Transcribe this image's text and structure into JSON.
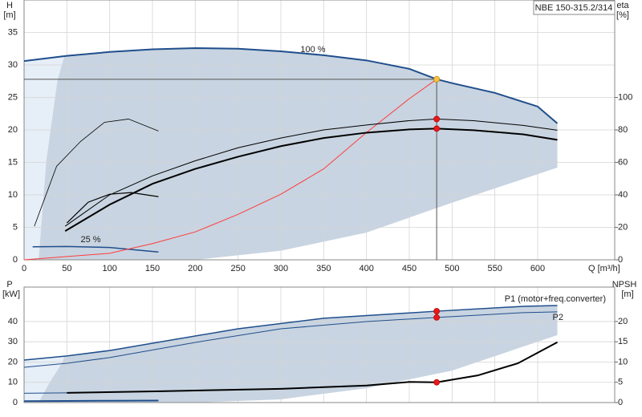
{
  "chart_data": [
    {
      "type": "line",
      "title": "NBE 150-315.2/314",
      "y_label": "H",
      "y_unit": "[m]",
      "y2_label": "eta",
      "y2_unit": "[%]",
      "x_label": "Q [m³/h]",
      "xlim": [
        0,
        690
      ],
      "xticks": [
        0,
        50,
        100,
        150,
        200,
        250,
        300,
        350,
        400,
        450,
        500,
        550,
        600
      ],
      "ylim": [
        0,
        40
      ],
      "yticks": [
        0,
        5,
        10,
        15,
        20,
        25,
        30,
        35
      ],
      "y2lim": [
        0,
        160
      ],
      "y2ticks": [
        0,
        20,
        40,
        60,
        80,
        100
      ],
      "grid": true,
      "areas": [
        {
          "color": "#e6eef7",
          "x": [
            0,
            47,
            39,
            26,
            17,
            0
          ],
          "values": [
            30.6,
            31.3,
            27.6,
            15.3,
            0,
            0
          ]
        },
        {
          "color": "#c8d4e1",
          "x": [
            47,
            100,
            150,
            200,
            250,
            300,
            350,
            400,
            450,
            482,
            500,
            550,
            600,
            623,
            623,
            500,
            400,
            300,
            200,
            17,
            26,
            39
          ],
          "values": [
            31.3,
            32,
            32.4,
            32.6,
            32.5,
            32.1,
            31.5,
            30.7,
            29.4,
            27.8,
            27.2,
            25.7,
            23.6,
            21,
            14.2,
            8.8,
            4.2,
            1.4,
            0,
            0,
            15.3,
            27.6
          ]
        }
      ],
      "series": [
        {
          "name": "100 %",
          "color": "#1f4e8c",
          "width": 2,
          "x": [
            0,
            50,
            100,
            150,
            200,
            250,
            300,
            350,
            400,
            450,
            482,
            500,
            550,
            600,
            623
          ],
          "values": [
            30.6,
            31.4,
            32,
            32.4,
            32.6,
            32.5,
            32.1,
            31.5,
            30.7,
            29.4,
            27.8,
            27.2,
            25.7,
            23.6,
            21
          ]
        },
        {
          "name": "25 %",
          "color": "#1f4e8c",
          "width": 1.5,
          "x": [
            10,
            50,
            100,
            157
          ],
          "values": [
            2,
            2.05,
            1.9,
            1.2
          ]
        },
        {
          "color": "#ff3b3b",
          "width": 1,
          "x": [
            0,
            100,
            150,
            200,
            250,
            300,
            350,
            400,
            450,
            482
          ],
          "values": [
            0,
            1,
            2.5,
            4.3,
            7,
            10.1,
            14,
            19.6,
            24.8,
            27.8
          ]
        },
        {
          "color": "#000000",
          "width": 1,
          "axis": "y2",
          "x": [
            48,
            100,
            150,
            200,
            250,
            300,
            350,
            400,
            450,
            482,
            525,
            583,
            623
          ],
          "values": [
            20.7,
            40,
            51.7,
            61,
            69,
            75,
            80,
            83,
            85.7,
            86.7,
            85.7,
            82.8,
            79.8
          ]
        },
        {
          "color": "#000000",
          "width": 2,
          "axis": "y2",
          "x": [
            48,
            100,
            150,
            200,
            250,
            300,
            350,
            400,
            450,
            482,
            525,
            583,
            623
          ],
          "values": [
            17.7,
            34,
            46.8,
            56,
            63.5,
            70,
            75,
            78.3,
            80.3,
            80.8,
            79.8,
            77.3,
            73.9
          ]
        },
        {
          "color": "#000000",
          "width": 0.8,
          "axis": "y2",
          "x": [
            12,
            38,
            66,
            94,
            122,
            157
          ],
          "values": [
            20.7,
            57.6,
            72.9,
            84.7,
            86.7,
            79.3
          ]
        },
        {
          "color": "#000000",
          "width": 1.2,
          "axis": "y2",
          "x": [
            50,
            75,
            100,
            125,
            157
          ],
          "values": [
            22.7,
            35.5,
            40.4,
            41.4,
            38.9
          ]
        }
      ],
      "points": [
        {
          "x": 482,
          "y": 27.8,
          "color": "#f5c542"
        },
        {
          "x": 482,
          "y": 86.7,
          "axis": "y2",
          "color": "#e8191c"
        },
        {
          "x": 482,
          "y": 80.8,
          "axis": "y2",
          "color": "#e8191c"
        }
      ]
    },
    {
      "type": "line",
      "y_label": "P",
      "y_unit": "[kW]",
      "y2_label": "NPSH",
      "y2_unit": "[m]",
      "xlim": [
        0,
        690
      ],
      "ylim": [
        0,
        57
      ],
      "yticks": [
        0,
        10,
        20,
        30,
        40
      ],
      "y2lim": [
        0,
        28.5
      ],
      "y2ticks": [
        0,
        5,
        10,
        15,
        20
      ],
      "grid": true,
      "areas": [
        {
          "color": "#e6eef7",
          "x": [
            0,
            47,
            45,
            30,
            17,
            0
          ],
          "values": [
            21,
            23,
            20,
            10,
            0,
            0
          ]
        },
        {
          "color": "#c8d4e1",
          "x": [
            47,
            100,
            150,
            250,
            350,
            482,
            583,
            623,
            623,
            500,
            400,
            300,
            200,
            17,
            30,
            45
          ],
          "values": [
            23,
            25.7,
            29.3,
            36.4,
            41.6,
            45.1,
            47.5,
            47.9,
            33.3,
            15.8,
            7.1,
            1.6,
            0,
            0,
            10,
            20
          ]
        }
      ],
      "series": [
        {
          "name": "P1 (motor+freq.converter)",
          "color": "#1f4e8c",
          "width": 1.5,
          "x": [
            0,
            50,
            100,
            150,
            250,
            350,
            482,
            583,
            623
          ],
          "values": [
            21,
            23,
            25.7,
            29.3,
            36.4,
            41.6,
            45.1,
            47.5,
            47.9
          ]
        },
        {
          "name": "P2",
          "color": "#1f4e8c",
          "width": 1,
          "x": [
            0,
            50,
            100,
            200,
            300,
            400,
            482,
            583,
            623
          ],
          "values": [
            17.4,
            19.4,
            22.2,
            29.7,
            36.4,
            40,
            42,
            44.4,
            44.8
          ]
        },
        {
          "color": "#1f4e8c",
          "width": 2,
          "x": [
            0,
            50,
            100,
            157
          ],
          "values": [
            0.7,
            0.8,
            0.9,
            1
          ]
        },
        {
          "color": "#1f4e8c",
          "width": 1,
          "x": [
            0,
            50
          ],
          "values": [
            4.6,
            4.8
          ]
        },
        {
          "color": "#000000",
          "width": 2,
          "axis": "y2",
          "x": [
            50,
            160,
            300,
            400,
            450,
            482,
            530,
            577,
            623
          ],
          "values": [
            2.4,
            2.8,
            3.4,
            4.2,
            5.1,
            5,
            6.7,
            9.7,
            14.9
          ]
        }
      ],
      "points": [
        {
          "x": 482,
          "y": 45.1,
          "color": "#e8191c"
        },
        {
          "x": 482,
          "y": 42,
          "color": "#e8191c"
        },
        {
          "x": 482,
          "y": 5,
          "axis": "y2",
          "color": "#e8191c"
        }
      ]
    }
  ]
}
